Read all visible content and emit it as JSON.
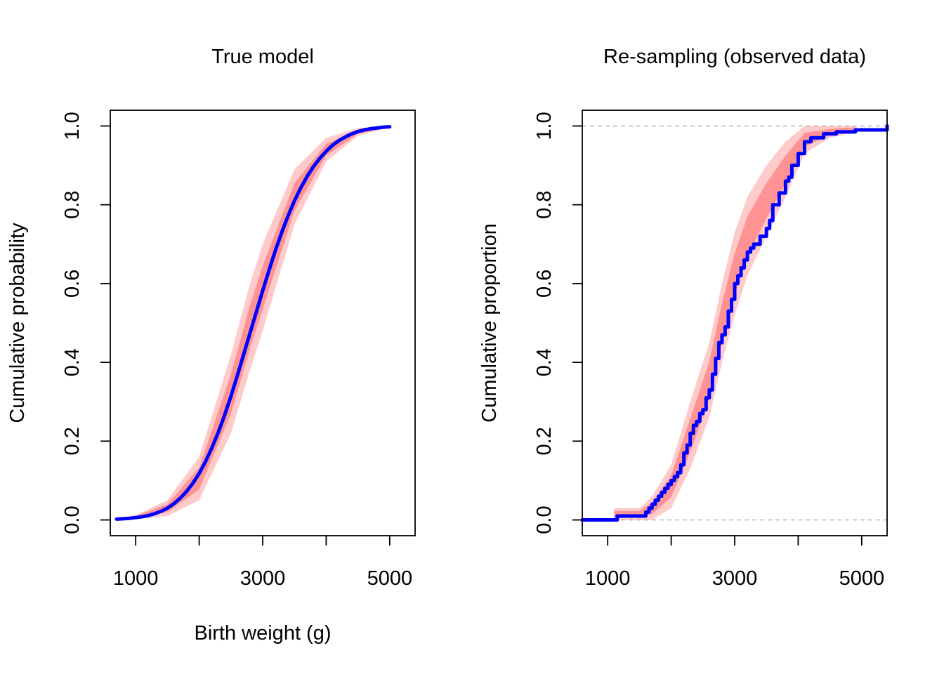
{
  "chart_data": [
    {
      "type": "line",
      "title": "True model",
      "xlabel": "Birth weight (g)",
      "ylabel": "Cumulative probability",
      "xlim": [
        600,
        5400
      ],
      "ylim": [
        -0.04,
        1.04
      ],
      "x_ticks": [
        1000,
        2000,
        3000,
        4000,
        5000
      ],
      "x_tick_labels": [
        "1000",
        "",
        "3000",
        "",
        "5000"
      ],
      "y_ticks": [
        0.0,
        0.2,
        0.4,
        0.6,
        0.8,
        1.0
      ],
      "y_tick_labels": [
        "0.0",
        "0.2",
        "0.4",
        "0.6",
        "0.8",
        "1.0"
      ],
      "colors": {
        "main": "#0000ff",
        "band": "#ff6666"
      },
      "band": {
        "x": [
          700,
          1000,
          1500,
          2000,
          2500,
          2800,
          3000,
          3500,
          4000,
          4500,
          5000
        ],
        "lower": [
          0.0,
          0.003,
          0.01,
          0.05,
          0.22,
          0.38,
          0.48,
          0.75,
          0.91,
          0.975,
          0.997
        ],
        "upper": [
          0.004,
          0.012,
          0.05,
          0.16,
          0.42,
          0.6,
          0.7,
          0.89,
          0.97,
          0.995,
          1.0
        ]
      },
      "series": [
        {
          "x": [
            700,
            800,
            900,
            1000,
            1100,
            1200,
            1300,
            1400,
            1500,
            1600,
            1700,
            1800,
            1900,
            2000,
            2100,
            2200,
            2300,
            2400,
            2500,
            2600,
            2700,
            2800,
            2900,
            3000,
            3100,
            3200,
            3300,
            3400,
            3500,
            3600,
            3700,
            3800,
            3900,
            4000,
            4100,
            4200,
            4300,
            4400,
            4500,
            4600,
            4700,
            4800,
            4900,
            5000
          ],
          "y": [
            0.002,
            0.003,
            0.004,
            0.006,
            0.008,
            0.011,
            0.016,
            0.022,
            0.03,
            0.041,
            0.055,
            0.072,
            0.093,
            0.118,
            0.148,
            0.183,
            0.222,
            0.266,
            0.314,
            0.366,
            0.42,
            0.474,
            0.528,
            0.582,
            0.634,
            0.684,
            0.73,
            0.772,
            0.81,
            0.843,
            0.872,
            0.897,
            0.918,
            0.936,
            0.951,
            0.963,
            0.972,
            0.98,
            0.986,
            0.99,
            0.993,
            0.995,
            0.997,
            0.998
          ]
        }
      ]
    },
    {
      "type": "line",
      "title": "Re-sampling (observed data)",
      "xlabel": "",
      "ylabel": "Cumulative proportion",
      "xlim": [
        600,
        5400
      ],
      "ylim": [
        -0.04,
        1.04
      ],
      "x_ticks": [
        1000,
        2000,
        3000,
        4000,
        5000
      ],
      "x_tick_labels": [
        "1000",
        "",
        "3000",
        "",
        "5000"
      ],
      "y_ticks": [
        0.0,
        0.2,
        0.4,
        0.6,
        0.8,
        1.0
      ],
      "y_tick_labels": [
        "0.0",
        "0.2",
        "0.4",
        "0.6",
        "0.8",
        "1.0"
      ],
      "reference_lines": [
        0.0,
        1.0
      ],
      "colors": {
        "main": "#0000ff",
        "band": "#ff6666",
        "reference": "#bebebe"
      },
      "band": {
        "x": [
          1100,
          1500,
          1700,
          2000,
          2300,
          2600,
          2800,
          3000,
          3200,
          3500,
          3800,
          4100,
          4500,
          4900
        ],
        "lower": [
          0.0,
          0.0,
          0.0,
          0.03,
          0.13,
          0.26,
          0.4,
          0.52,
          0.62,
          0.72,
          0.82,
          0.93,
          0.97,
          0.985
        ],
        "upper": [
          0.03,
          0.03,
          0.06,
          0.14,
          0.3,
          0.45,
          0.6,
          0.73,
          0.82,
          0.9,
          0.96,
          1.0,
          1.0,
          1.0
        ]
      },
      "series": [
        {
          "x": [
            600,
            1130,
            1150,
            1550,
            1600,
            1650,
            1700,
            1750,
            1800,
            1850,
            1900,
            1950,
            2000,
            2050,
            2100,
            2150,
            2200,
            2250,
            2300,
            2350,
            2400,
            2450,
            2500,
            2550,
            2600,
            2650,
            2700,
            2750,
            2800,
            2850,
            2900,
            2950,
            3000,
            3050,
            3100,
            3150,
            3200,
            3250,
            3300,
            3400,
            3500,
            3550,
            3600,
            3700,
            3800,
            3850,
            3900,
            4000,
            4100,
            4200,
            4400,
            4600,
            4800,
            4900,
            5400
          ],
          "y": [
            0.0,
            0.0,
            0.01,
            0.01,
            0.02,
            0.03,
            0.04,
            0.05,
            0.06,
            0.07,
            0.08,
            0.09,
            0.1,
            0.11,
            0.12,
            0.14,
            0.17,
            0.19,
            0.22,
            0.24,
            0.25,
            0.27,
            0.28,
            0.31,
            0.33,
            0.37,
            0.41,
            0.45,
            0.47,
            0.49,
            0.53,
            0.56,
            0.6,
            0.62,
            0.64,
            0.66,
            0.68,
            0.69,
            0.7,
            0.72,
            0.74,
            0.76,
            0.8,
            0.83,
            0.86,
            0.87,
            0.9,
            0.93,
            0.96,
            0.97,
            0.98,
            0.985,
            0.985,
            0.99,
            1.0
          ]
        }
      ]
    }
  ]
}
